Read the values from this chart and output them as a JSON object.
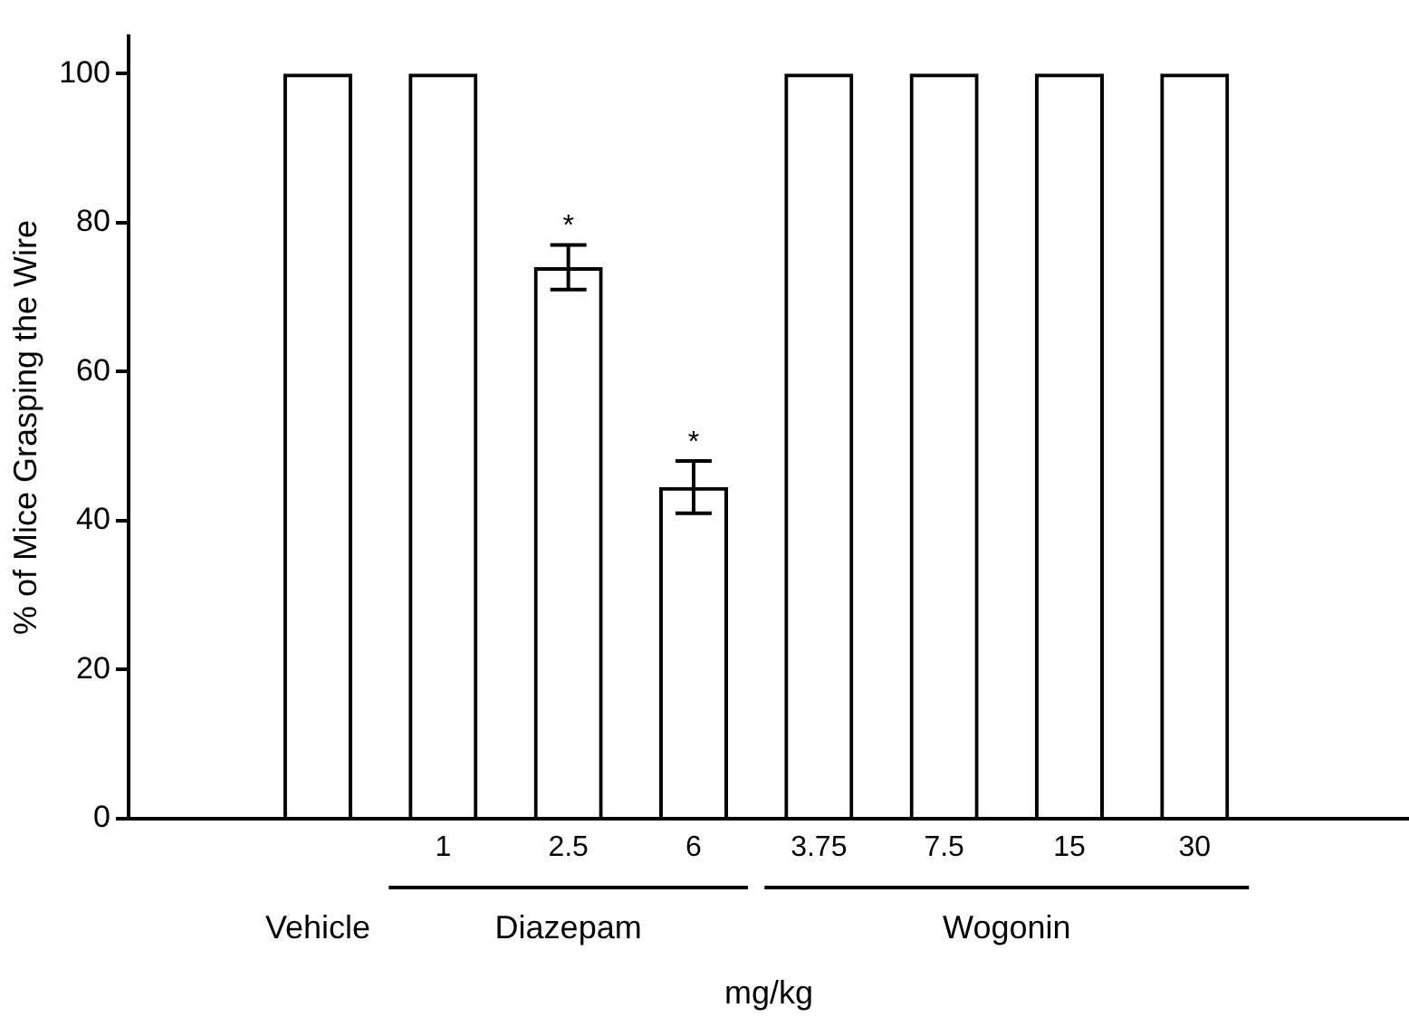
{
  "chart_data": {
    "type": "bar",
    "xlabel": "mg/kg",
    "ylabel": "% of Mice Grasping the Wire",
    "categories": [
      null,
      "1",
      "2.5",
      "6",
      "3.75",
      "7.5",
      "15",
      "30"
    ],
    "values": [
      100,
      100,
      74,
      44.5,
      100,
      100,
      100,
      100
    ],
    "errors": [
      null,
      null,
      3,
      3.5,
      null,
      null,
      null,
      null
    ],
    "color": "#000000",
    "ylim": [
      0,
      105
    ],
    "yticks": [
      0,
      20,
      40,
      60,
      80,
      100
    ],
    "annotations": [
      "Vehicle",
      "Diazepam",
      "Wogonin",
      {
        "text": "*",
        "x": "2.5",
        "y": 77
      },
      {
        "text": "*",
        "x": "6",
        "y": 48
      }
    ],
    "grid": false,
    "legend": false
  }
}
